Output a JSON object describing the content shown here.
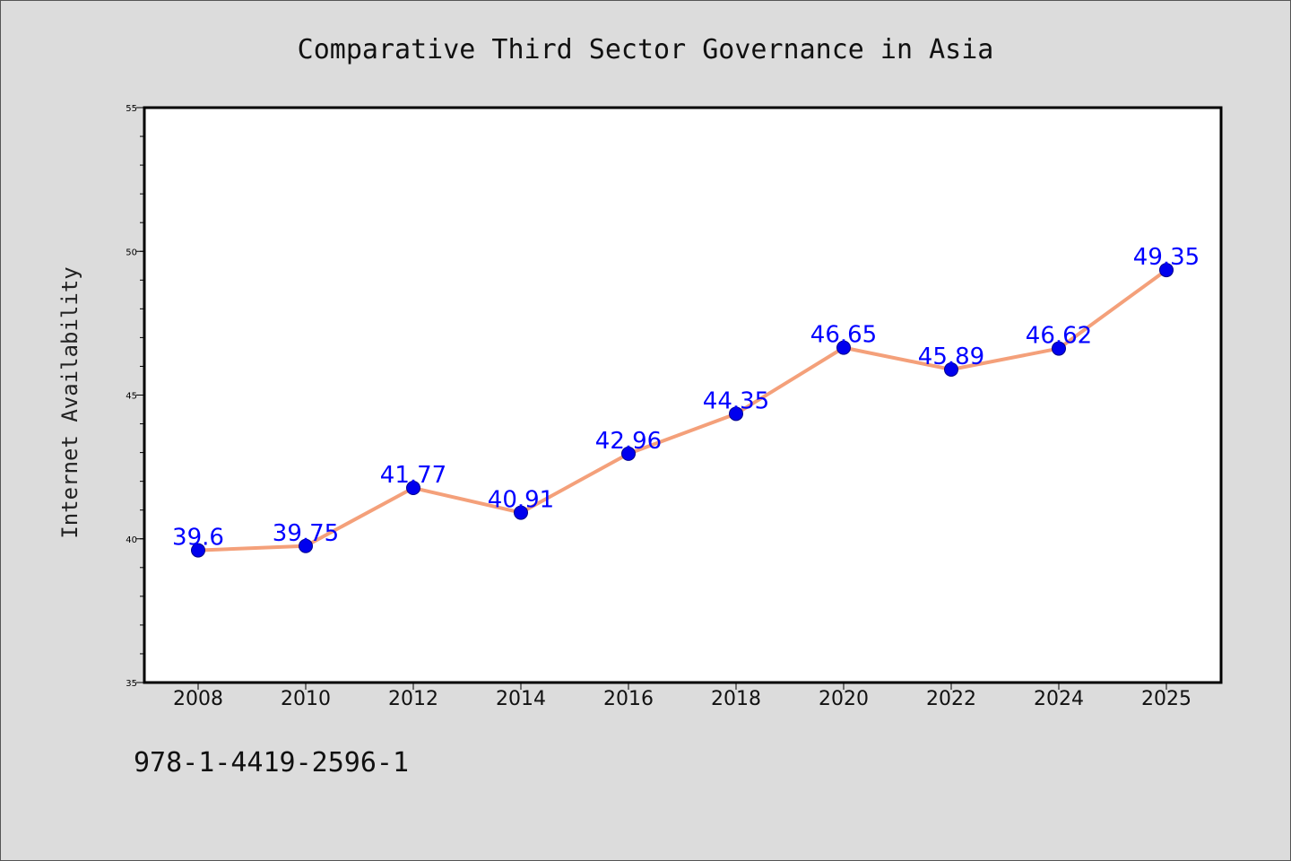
{
  "chart_data": {
    "type": "line",
    "title": "Comparative Third Sector Governance in Asia",
    "xlabel": "",
    "ylabel": "Internet Availability",
    "categories": [
      "2008",
      "2010",
      "2012",
      "2014",
      "2016",
      "2018",
      "2020",
      "2022",
      "2024",
      "2025"
    ],
    "series": [
      {
        "values": [
          39.6,
          39.75,
          41.77,
          40.91,
          42.96,
          44.35,
          46.65,
          45.89,
          46.62,
          49.35
        ],
        "data_labels": [
          "39.6",
          "39.75",
          "41.77",
          "40.91",
          "42.96",
          "44.35",
          "46.65",
          "45.89",
          "46.62",
          "49.35"
        ]
      }
    ],
    "ylim": [
      35,
      55
    ],
    "y_ticks": [
      "35",
      "40",
      "45",
      "50",
      "55"
    ],
    "grid": false,
    "legend": "none",
    "colors": {
      "line": "#f4a07a",
      "marker": "#0000ee",
      "data_label": "#0000ff",
      "plot_background": "#ffffff",
      "page_background": "#dcdcdc"
    }
  },
  "footer": {
    "code": "978-1-4419-2596-1"
  }
}
